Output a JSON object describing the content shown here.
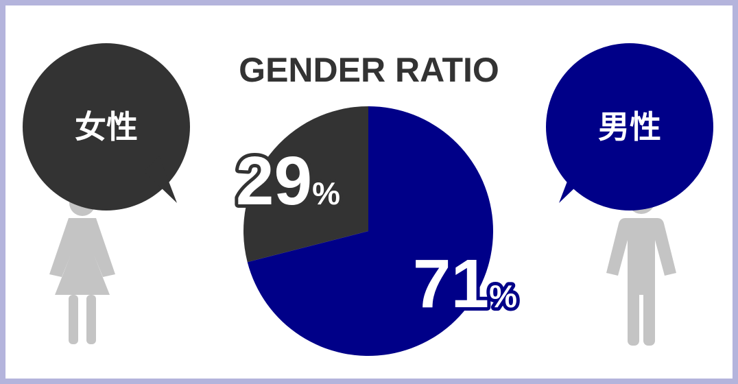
{
  "chart_data": {
    "type": "pie",
    "title": "GENDER RATIO",
    "categories": [
      "女性",
      "男性"
    ],
    "values": [
      29,
      71
    ],
    "value_labels": [
      "29%",
      "71%"
    ],
    "colors": [
      "#333333",
      "#000088"
    ]
  }
}
